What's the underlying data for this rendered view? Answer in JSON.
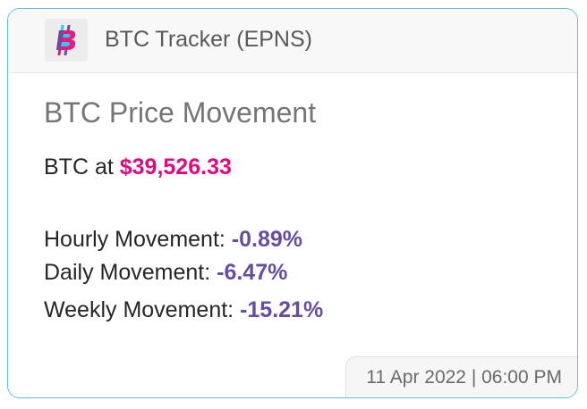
{
  "header": {
    "app_name": "BTC Tracker (EPNS)",
    "icon": "bitcoin-logo-icon"
  },
  "notification": {
    "title": "BTC Price Movement",
    "price_prefix": "BTC at ",
    "price_value": "$39,526.33",
    "hourly_label": "Hourly Movement: ",
    "hourly_value": "-0.89%",
    "daily_label": "Daily Movement: ",
    "daily_value": "-6.47%",
    "weekly_label": "Weekly Movement: ",
    "weekly_value": "-15.21%"
  },
  "footer": {
    "timestamp": "11 Apr 2022 | 06:00 PM"
  },
  "colors": {
    "border": "#5dc4d9",
    "price": "#e20880",
    "movement": "#674c9f",
    "icon_pink": "#e8197d",
    "icon_blue": "#35c5f3",
    "icon_purple": "#674c9f"
  }
}
